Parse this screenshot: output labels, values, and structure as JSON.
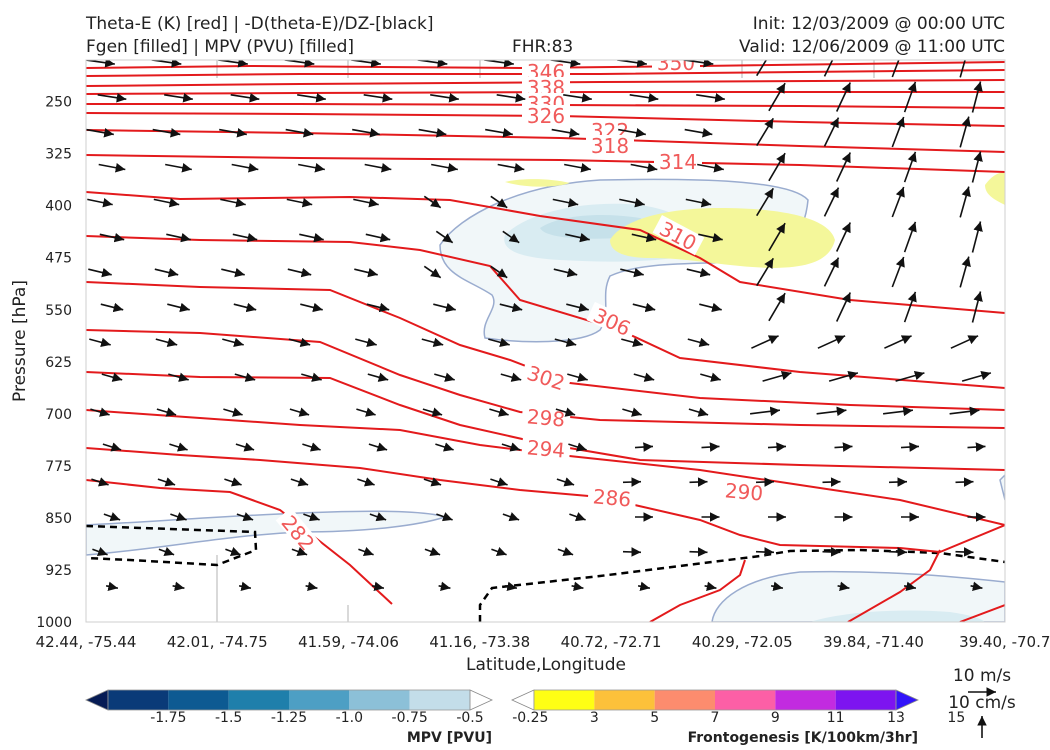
{
  "header": {
    "title_line1": "Theta-E (K) [red] | -D(theta-E)/DZ-[black]",
    "title_line2": "Fgen [filled] | MPV (PVU) [filled]",
    "fhr": "FHR:83",
    "init": "Init: 12/03/2009 @ 00:00 UTC",
    "valid": "Valid: 12/06/2009 @ 11:00 UTC"
  },
  "chart_data": {
    "type": "cross-section",
    "xlabel": "Latitude,Longitude",
    "ylabel": "Pressure [hPa]",
    "x_ticks": [
      "42.44, -75.44",
      "42.01, -74.75",
      "41.59, -74.06",
      "41.16, -73.38",
      "40.72, -72.71",
      "40.29, -72.05",
      "39.84, -71.40",
      "39.40, -70.7"
    ],
    "y_ticks": [
      250,
      325,
      400,
      475,
      550,
      625,
      700,
      775,
      850,
      925,
      1000
    ],
    "ylim": [
      1000,
      190
    ],
    "theta_e_contour_labels": [
      {
        "value": "346"
      },
      {
        "value": "350"
      },
      {
        "value": "338"
      },
      {
        "value": "330"
      },
      {
        "value": "326"
      },
      {
        "value": "322"
      },
      {
        "value": "318"
      },
      {
        "value": "314"
      },
      {
        "value": "310"
      },
      {
        "value": "306"
      },
      {
        "value": "302"
      },
      {
        "value": "298"
      },
      {
        "value": "294"
      },
      {
        "value": "290"
      },
      {
        "value": "286"
      },
      {
        "value": "282"
      }
    ],
    "mpv_colorbar": {
      "label": "MPV [PVU]",
      "ticks": [
        "-1.75",
        "-1.5",
        "-1.25",
        "-1.0",
        "-0.75",
        "-0.5",
        "-0.25"
      ],
      "colors": [
        "#071c55",
        "#0a3a78",
        "#0d5a92",
        "#1f7fab",
        "#4d9fc4",
        "#8cc0d8",
        "#c3dde9",
        "#ffffff"
      ]
    },
    "fgen_colorbar": {
      "label": "Frontogenesis [K/100km/3hr]",
      "ticks": [
        "3",
        "5",
        "7",
        "9",
        "11",
        "13",
        "15"
      ],
      "colors": [
        "#ffffff",
        "#ffff14",
        "#fcc13a",
        "#fc8c6e",
        "#fc5fa6",
        "#c22be0",
        "#7d14f0",
        "#3214fa"
      ]
    },
    "wind_key": {
      "h_label": "10 m/s",
      "v_label": "10 cm/s"
    }
  }
}
